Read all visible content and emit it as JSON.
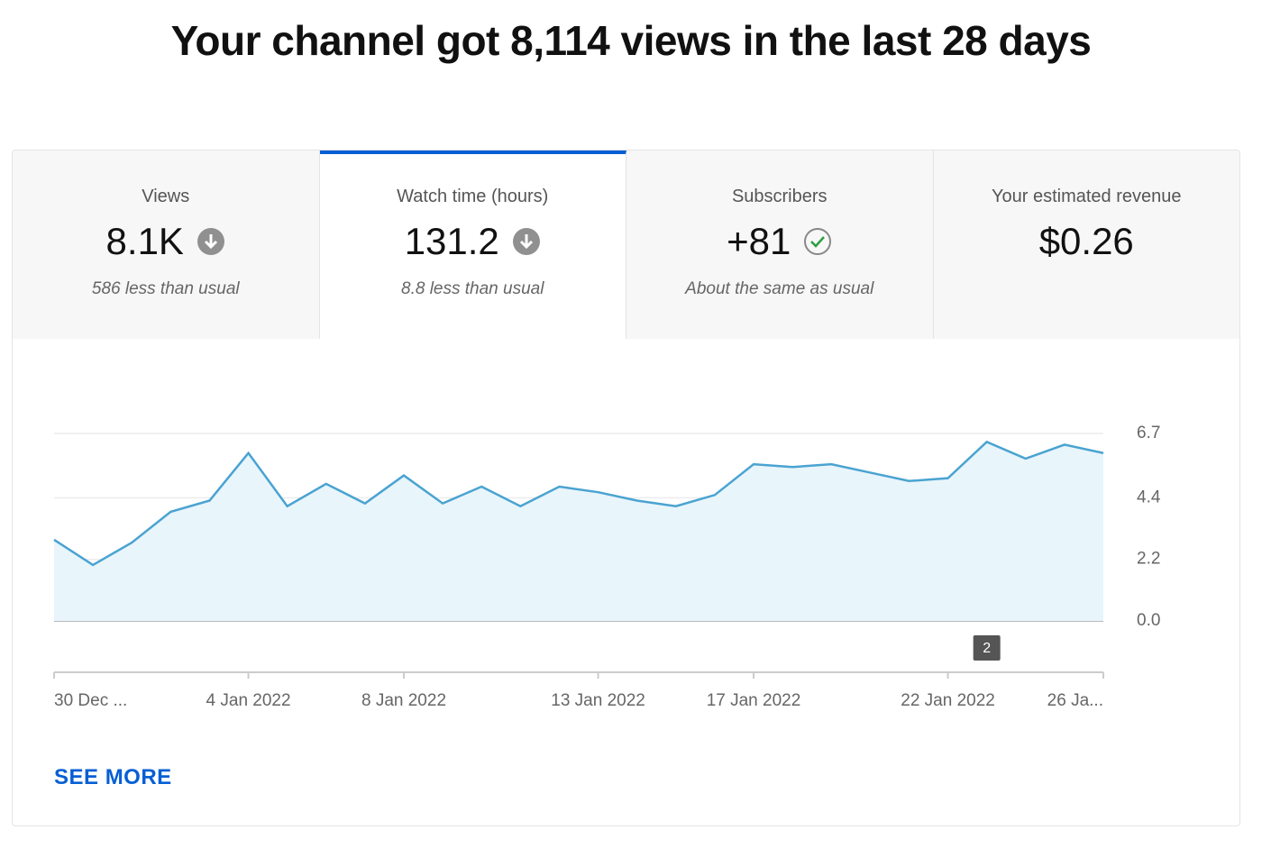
{
  "header": {
    "title": "Your channel got 8,114 views in the last 28 days"
  },
  "tabs": [
    {
      "label": "Views",
      "value": "8.1K",
      "icon": "down",
      "note": "586 less than usual",
      "selected": false
    },
    {
      "label": "Watch time (hours)",
      "value": "131.2",
      "icon": "down",
      "note": "8.8 less than usual",
      "selected": true
    },
    {
      "label": "Subscribers",
      "value": "+81",
      "icon": "check",
      "note": "About the same as usual",
      "selected": false
    },
    {
      "label": "Your estimated revenue",
      "value": "$0.26",
      "selected": false
    }
  ],
  "chart_data": {
    "type": "area",
    "color": "#4aa3d1",
    "categories": [
      "30 Dec ...",
      null,
      null,
      null,
      null,
      "4 Jan 2022",
      null,
      null,
      null,
      "8 Jan 2022",
      null,
      null,
      null,
      null,
      "13 Jan 2022",
      null,
      null,
      null,
      "17 Jan 2022",
      null,
      null,
      null,
      null,
      "22 Jan 2022",
      null,
      null,
      null,
      "26 Ja..."
    ],
    "values": [
      2.9,
      2.0,
      2.8,
      3.9,
      4.3,
      6.0,
      4.1,
      4.9,
      4.2,
      5.2,
      4.2,
      4.8,
      4.1,
      4.8,
      4.6,
      4.3,
      4.1,
      4.5,
      5.6,
      5.5,
      5.6,
      5.3,
      5.0,
      5.1,
      6.4,
      5.8,
      6.3,
      6.0
    ],
    "ylim": [
      0,
      6.7
    ],
    "yticks": [
      {
        "value": 0,
        "label": "0.0"
      },
      2.2,
      4.4,
      6.7
    ],
    "grid": true,
    "annotations": [
      {
        "category_index": 24,
        "text": "2"
      }
    ]
  },
  "see_more": "SEE MORE"
}
